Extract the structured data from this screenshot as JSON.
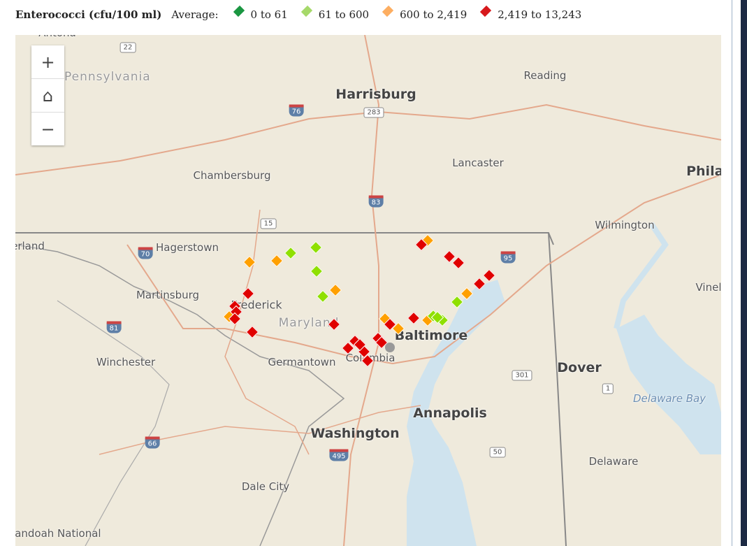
{
  "legend": {
    "title": "Enterococci (cfu/100 ml)",
    "average_label": "Average:",
    "classes": [
      {
        "label": "0 to 61",
        "color": "#1a9641"
      },
      {
        "label": "61 to 600",
        "color": "#a6d96a"
      },
      {
        "label": "600 to 2,419",
        "color": "#fdae61"
      },
      {
        "label": "2,419 to 13,243",
        "color": "#d7191c"
      }
    ]
  },
  "marker_colors": {
    "light_green": "#8fe000",
    "orange": "#ffa000",
    "red": "#e00000",
    "unknown": "#999999"
  },
  "zoom_controls": {
    "zoom_in": "+",
    "home": "⌂",
    "zoom_out": "−"
  },
  "map": {
    "places": [
      "Pennsylvania",
      "Harrisburg",
      "Reading",
      "Lancaster",
      "Chambersburg",
      "Philade",
      "Wilmington",
      "Hagerstown",
      "erland",
      "Martinsburg",
      "Frederick",
      "Vinel",
      "Winchester",
      "Germantown",
      "Columbia",
      "Baltimore",
      "Dover",
      "Delaware Bay",
      "Annapolis",
      "Washington",
      "Delaware",
      "Dale City",
      "Shenandoah National",
      "Maryland",
      "Antona"
    ],
    "shields": [
      "22",
      "76",
      "283",
      "83",
      "15",
      "70",
      "95",
      "81",
      "301",
      "1",
      "50",
      "66",
      "495"
    ]
  }
}
